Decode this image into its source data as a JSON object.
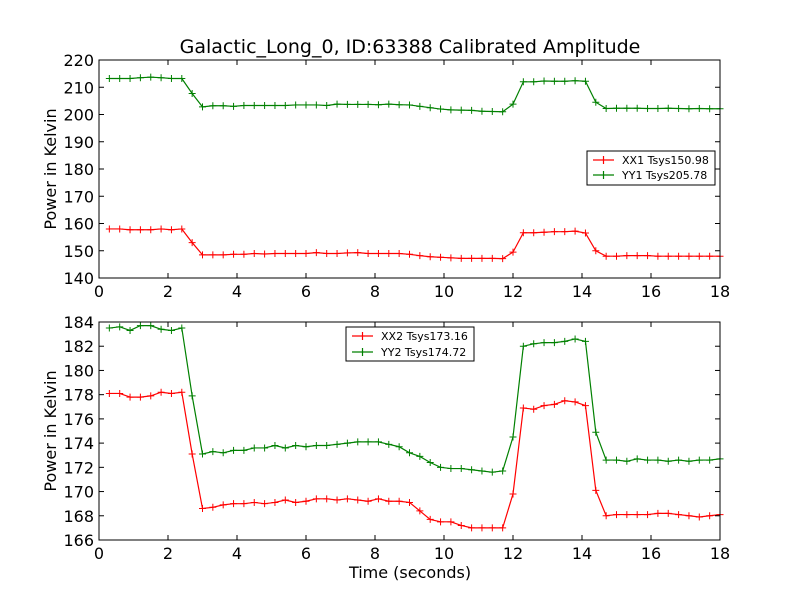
{
  "figure": {
    "title": "Galactic_Long_0, ID:63388 Calibrated Amplitude"
  },
  "chart_data": [
    {
      "type": "line",
      "xlabel": "",
      "ylabel": "Power in Kelvin",
      "xlim": [
        0,
        18
      ],
      "ylim": [
        140,
        220
      ],
      "xticks": [
        0,
        2,
        4,
        6,
        8,
        10,
        12,
        14,
        16,
        18
      ],
      "yticks": [
        140,
        150,
        160,
        170,
        180,
        190,
        200,
        210,
        220
      ],
      "legend_position": "center-right",
      "x": [
        0.3,
        0.6,
        0.9,
        1.2,
        1.5,
        1.8,
        2.1,
        2.4,
        2.7,
        3.0,
        3.3,
        3.6,
        3.9,
        4.2,
        4.5,
        4.8,
        5.1,
        5.4,
        5.7,
        6.0,
        6.3,
        6.6,
        6.9,
        7.2,
        7.5,
        7.8,
        8.1,
        8.4,
        8.7,
        9.0,
        9.3,
        9.6,
        9.9,
        10.2,
        10.5,
        10.8,
        11.1,
        11.4,
        11.7,
        12.0,
        12.3,
        12.6,
        12.9,
        13.2,
        13.5,
        13.8,
        14.1,
        14.4,
        14.7,
        15.0,
        15.3,
        15.6,
        15.9,
        16.2,
        16.5,
        16.8,
        17.1,
        17.4,
        17.7,
        18.0
      ],
      "series": [
        {
          "name": "XX1 Tsys150.98",
          "color": "#ff0000",
          "values": [
            158.0,
            158.0,
            157.7,
            157.7,
            157.7,
            158.0,
            157.7,
            158.0,
            153.0,
            148.5,
            148.5,
            148.5,
            148.7,
            148.7,
            149.0,
            148.8,
            149.0,
            149.0,
            149.0,
            149.0,
            149.3,
            149.0,
            149.0,
            149.2,
            149.3,
            149.0,
            149.0,
            149.0,
            149.0,
            148.7,
            148.2,
            147.8,
            147.6,
            147.4,
            147.2,
            147.2,
            147.2,
            147.2,
            147.1,
            149.5,
            156.6,
            156.6,
            156.8,
            157.0,
            157.0,
            157.2,
            156.5,
            150.0,
            148.0,
            148.0,
            148.2,
            148.2,
            148.2,
            148.0,
            148.0,
            148.0,
            148.0,
            148.0,
            148.0,
            148.0
          ]
        },
        {
          "name": "YY1 Tsys205.78",
          "color": "#008000",
          "values": [
            213.2,
            213.2,
            213.2,
            213.5,
            213.7,
            213.5,
            213.2,
            213.2,
            207.7,
            202.8,
            203.2,
            203.2,
            203.0,
            203.3,
            203.3,
            203.3,
            203.3,
            203.3,
            203.5,
            203.5,
            203.5,
            203.3,
            203.8,
            203.7,
            203.7,
            203.7,
            203.6,
            203.8,
            203.6,
            203.5,
            203.0,
            202.5,
            202.0,
            201.7,
            201.6,
            201.5,
            201.2,
            201.1,
            201.0,
            203.8,
            212.0,
            212.0,
            212.3,
            212.2,
            212.2,
            212.4,
            212.2,
            204.5,
            202.2,
            202.3,
            202.3,
            202.3,
            202.2,
            202.2,
            202.3,
            202.2,
            202.1,
            202.2,
            202.1,
            202.1
          ]
        }
      ]
    },
    {
      "type": "line",
      "xlabel": "Time (seconds)",
      "ylabel": "Power in Kelvin",
      "xlim": [
        0,
        18
      ],
      "ylim": [
        166,
        184
      ],
      "xticks": [
        0,
        2,
        4,
        6,
        8,
        10,
        12,
        14,
        16,
        18
      ],
      "yticks": [
        166,
        168,
        170,
        172,
        174,
        176,
        178,
        180,
        182,
        184
      ],
      "legend_position": "upper-center",
      "x": [
        0.3,
        0.6,
        0.9,
        1.2,
        1.5,
        1.8,
        2.1,
        2.4,
        2.7,
        3.0,
        3.3,
        3.6,
        3.9,
        4.2,
        4.5,
        4.8,
        5.1,
        5.4,
        5.7,
        6.0,
        6.3,
        6.6,
        6.9,
        7.2,
        7.5,
        7.8,
        8.1,
        8.4,
        8.7,
        9.0,
        9.3,
        9.6,
        9.9,
        10.2,
        10.5,
        10.8,
        11.1,
        11.4,
        11.7,
        12.0,
        12.3,
        12.6,
        12.9,
        13.2,
        13.5,
        13.8,
        14.1,
        14.4,
        14.7,
        15.0,
        15.3,
        15.6,
        15.9,
        16.2,
        16.5,
        16.8,
        17.1,
        17.4,
        17.7,
        18.0
      ],
      "series": [
        {
          "name": "XX2 Tsys173.16",
          "color": "#ff0000",
          "values": [
            178.1,
            178.1,
            177.8,
            177.8,
            177.9,
            178.2,
            178.1,
            178.2,
            173.1,
            168.6,
            168.7,
            168.9,
            169.0,
            169.0,
            169.1,
            169.0,
            169.1,
            169.3,
            169.1,
            169.2,
            169.4,
            169.4,
            169.3,
            169.4,
            169.3,
            169.2,
            169.4,
            169.2,
            169.2,
            169.1,
            168.4,
            167.7,
            167.5,
            167.5,
            167.2,
            167.0,
            167.0,
            167.0,
            167.0,
            169.8,
            176.9,
            176.8,
            177.1,
            177.2,
            177.5,
            177.4,
            177.1,
            170.1,
            168.0,
            168.1,
            168.1,
            168.1,
            168.1,
            168.2,
            168.2,
            168.1,
            168.0,
            167.9,
            168.0,
            168.1
          ]
        },
        {
          "name": "YY2 Tsys174.72",
          "color": "#008000",
          "values": [
            183.5,
            183.6,
            183.3,
            183.7,
            183.7,
            183.4,
            183.3,
            183.5,
            177.9,
            173.1,
            173.3,
            173.2,
            173.4,
            173.4,
            173.6,
            173.6,
            173.8,
            173.6,
            173.8,
            173.7,
            173.8,
            173.8,
            173.9,
            174.0,
            174.1,
            174.1,
            174.1,
            173.9,
            173.7,
            173.2,
            172.9,
            172.4,
            172.0,
            171.9,
            171.9,
            171.8,
            171.7,
            171.6,
            171.7,
            174.5,
            182.0,
            182.2,
            182.3,
            182.3,
            182.4,
            182.6,
            182.4,
            174.9,
            172.6,
            172.6,
            172.5,
            172.7,
            172.6,
            172.6,
            172.5,
            172.6,
            172.5,
            172.6,
            172.6,
            172.7
          ]
        }
      ]
    }
  ]
}
